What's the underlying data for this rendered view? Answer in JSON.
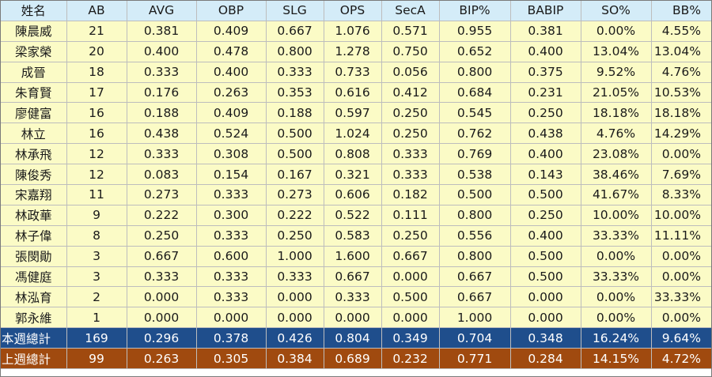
{
  "table": {
    "headers": [
      "姓名",
      "AB",
      "AVG",
      "OBP",
      "SLG",
      "OPS",
      "SecA",
      "BIP%",
      "BABIP",
      "SO%",
      "BB%"
    ],
    "rows": [
      [
        "陳晨威",
        "21",
        "0.381",
        "0.409",
        "0.667",
        "1.076",
        "0.571",
        "0.955",
        "0.381",
        "0.00%",
        "4.55%"
      ],
      [
        "梁家榮",
        "20",
        "0.400",
        "0.478",
        "0.800",
        "1.278",
        "0.750",
        "0.652",
        "0.400",
        "13.04%",
        "13.04%"
      ],
      [
        "成晉",
        "18",
        "0.333",
        "0.400",
        "0.333",
        "0.733",
        "0.056",
        "0.800",
        "0.375",
        "9.52%",
        "4.76%"
      ],
      [
        "朱育賢",
        "17",
        "0.176",
        "0.263",
        "0.353",
        "0.616",
        "0.412",
        "0.684",
        "0.231",
        "21.05%",
        "10.53%"
      ],
      [
        "廖健富",
        "16",
        "0.188",
        "0.409",
        "0.188",
        "0.597",
        "0.250",
        "0.545",
        "0.250",
        "18.18%",
        "18.18%"
      ],
      [
        "林立",
        "16",
        "0.438",
        "0.524",
        "0.500",
        "1.024",
        "0.250",
        "0.762",
        "0.438",
        "4.76%",
        "14.29%"
      ],
      [
        "林承飛",
        "12",
        "0.333",
        "0.308",
        "0.500",
        "0.808",
        "0.333",
        "0.769",
        "0.400",
        "23.08%",
        "0.00%"
      ],
      [
        "陳俊秀",
        "12",
        "0.083",
        "0.154",
        "0.167",
        "0.321",
        "0.333",
        "0.538",
        "0.143",
        "38.46%",
        "7.69%"
      ],
      [
        "宋嘉翔",
        "11",
        "0.273",
        "0.333",
        "0.273",
        "0.606",
        "0.182",
        "0.500",
        "0.500",
        "41.67%",
        "8.33%"
      ],
      [
        "林政華",
        "9",
        "0.222",
        "0.300",
        "0.222",
        "0.522",
        "0.111",
        "0.800",
        "0.250",
        "10.00%",
        "10.00%"
      ],
      [
        "林子偉",
        "8",
        "0.250",
        "0.333",
        "0.250",
        "0.583",
        "0.250",
        "0.556",
        "0.400",
        "33.33%",
        "11.11%"
      ],
      [
        "張閔勛",
        "3",
        "0.667",
        "0.600",
        "1.000",
        "1.600",
        "0.667",
        "0.800",
        "0.500",
        "0.00%",
        "0.00%"
      ],
      [
        "馮健庭",
        "3",
        "0.333",
        "0.333",
        "0.333",
        "0.667",
        "0.000",
        "0.667",
        "0.500",
        "33.33%",
        "0.00%"
      ],
      [
        "林泓育",
        "2",
        "0.000",
        "0.333",
        "0.000",
        "0.333",
        "0.500",
        "0.667",
        "0.000",
        "0.00%",
        "33.33%"
      ],
      [
        "郭永維",
        "1",
        "0.000",
        "0.000",
        "0.000",
        "0.000",
        "0.000",
        "1.000",
        "0.000",
        "0.00%",
        "0.00%"
      ]
    ],
    "totals": [
      {
        "cells": [
          "本週總計",
          "169",
          "0.296",
          "0.378",
          "0.426",
          "0.804",
          "0.349",
          "0.704",
          "0.348",
          "16.24%",
          "9.64%"
        ],
        "color": "#1f4e8c"
      },
      {
        "cells": [
          "上週總計",
          "99",
          "0.263",
          "0.305",
          "0.384",
          "0.689",
          "0.232",
          "0.771",
          "0.284",
          "14.15%",
          "4.72%"
        ],
        "color": "#a04a0f"
      }
    ]
  },
  "colors": {
    "header_bg": "#d4ecf8",
    "row_bg": "#fbfbc6"
  }
}
